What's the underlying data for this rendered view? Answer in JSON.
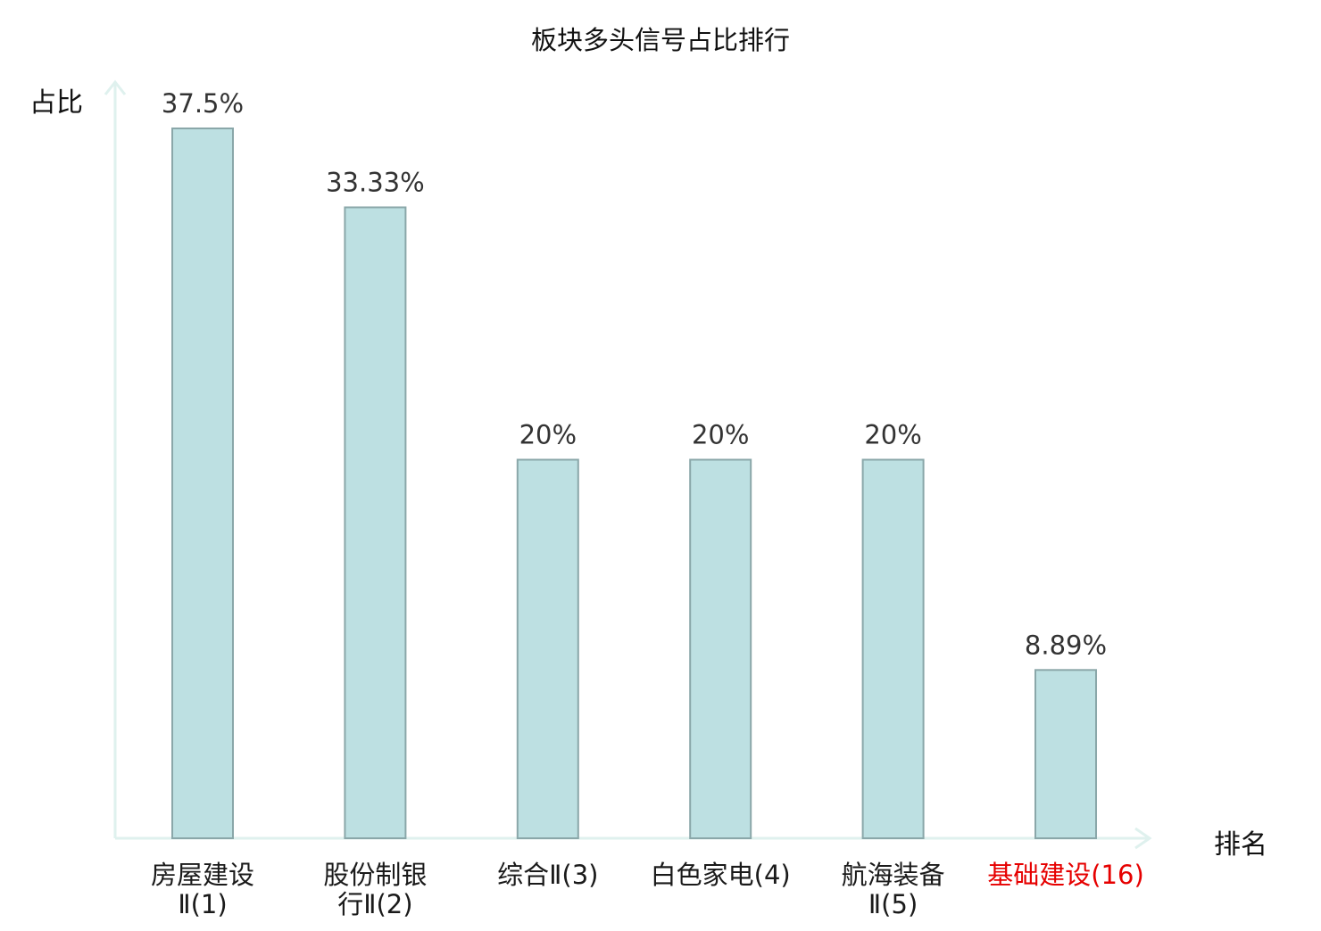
{
  "title": "板块多头信号占比排行",
  "y_axis_label": "占比",
  "x_axis_label": "排名",
  "colors": {
    "bar_fill": "#bde0e2",
    "bar_stroke": "#8aa7a9",
    "axis": "#dff1ee",
    "highlight": "#e60000"
  },
  "chart_data": {
    "type": "bar",
    "title": "板块多头信号占比排行",
    "xlabel": "排名",
    "ylabel": "占比",
    "ylim": [
      0,
      40
    ],
    "categories": [
      {
        "name": "房屋建设",
        "rank": "Ⅱ(1)",
        "lines": [
          "房屋建设",
          "Ⅱ(1)"
        ],
        "highlight": false
      },
      {
        "name": "股份制银",
        "rank": "行Ⅱ(2)",
        "lines": [
          "股份制银",
          "行Ⅱ(2)"
        ],
        "highlight": false
      },
      {
        "name": "综合",
        "rank": "Ⅱ(3)",
        "lines": [
          "综合Ⅱ(3)"
        ],
        "highlight": false
      },
      {
        "name": "白色家电",
        "rank": "(4)",
        "lines": [
          "白色家电(4)"
        ],
        "highlight": false
      },
      {
        "name": "航海装备",
        "rank": "Ⅱ(5)",
        "lines": [
          "航海装备",
          "Ⅱ(5)"
        ],
        "highlight": false
      },
      {
        "name": "基础建设",
        "rank": "(16)",
        "lines": [
          "基础建设(16)"
        ],
        "highlight": true
      }
    ],
    "values": [
      37.5,
      33.33,
      20,
      20,
      20,
      8.89
    ],
    "value_labels": [
      "37.5%",
      "33.33%",
      "20%",
      "20%",
      "20%",
      "8.89%"
    ],
    "grid": false,
    "legend": "none"
  }
}
